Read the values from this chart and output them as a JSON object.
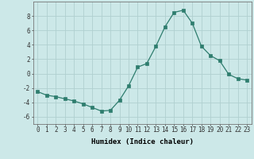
{
  "x": [
    0,
    1,
    2,
    3,
    4,
    5,
    6,
    7,
    8,
    9,
    10,
    11,
    12,
    13,
    14,
    15,
    16,
    17,
    18,
    19,
    20,
    21,
    22,
    23
  ],
  "y": [
    -2.5,
    -3.0,
    -3.2,
    -3.5,
    -3.8,
    -4.2,
    -4.7,
    -5.2,
    -5.1,
    -3.7,
    -1.7,
    0.9,
    1.4,
    3.8,
    6.5,
    8.5,
    8.8,
    7.0,
    3.8,
    2.5,
    1.8,
    -0.1,
    -0.7,
    -0.9
  ],
  "line_color": "#2e7d6e",
  "marker": "s",
  "marker_size": 2.5,
  "bg_color": "#cce8e8",
  "grid_color": "#b0d0d0",
  "xlabel": "Humidex (Indice chaleur)",
  "ylim": [
    -7,
    10
  ],
  "yticks": [
    -6,
    -4,
    -2,
    0,
    2,
    4,
    6,
    8
  ],
  "xticks": [
    0,
    1,
    2,
    3,
    4,
    5,
    6,
    7,
    8,
    9,
    10,
    11,
    12,
    13,
    14,
    15,
    16,
    17,
    18,
    19,
    20,
    21,
    22,
    23
  ],
  "label_fontsize": 6.5,
  "tick_fontsize": 5.5
}
